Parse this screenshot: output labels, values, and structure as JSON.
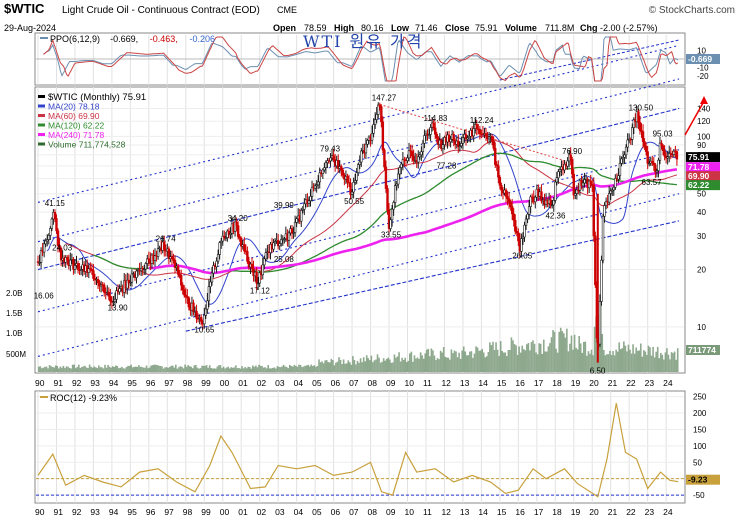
{
  "header": {
    "symbol": "$WTIC",
    "name": "Light Crude Oil - Continuous Contract (EOD)",
    "exchange": "CME",
    "date": "29-Aug-2024",
    "open_label": "Open",
    "open": "78.59",
    "high_label": "High",
    "high": "80.16",
    "low_label": "Low",
    "low": "71.46",
    "close_label": "Close",
    "close": "75.91",
    "volume_label": "Volume",
    "volume": "711.8M",
    "chg_label": "Chg",
    "chg": "-2.00 (-2.57%)",
    "brand": "© StockCharts.com"
  },
  "overlay_title": "WTI 원유 가격",
  "colors": {
    "up": "#1a1a1a",
    "down": "#cc0000",
    "ma20": "#3344cc",
    "ma60": "#cc3344",
    "ma120": "#2e8b2e",
    "ma240": "#ee22ee",
    "volume": "#7a9a7a",
    "ppo": "#6b8fb0",
    "ppo_signal": "#cc4444",
    "roc": "#c8a13c",
    "channel": "#2233cc",
    "resistance": "#d44"
  },
  "ppo_panel": {
    "legend": [
      {
        "text": "PPO(6,12,9)",
        "color": "#000"
      },
      {
        "text": "-0.669,",
        "color": "#000"
      },
      {
        "text": "-0.463,",
        "color": "#cc0000"
      },
      {
        "text": "-0.206",
        "color": "#3366cc"
      }
    ],
    "axis_ticks": [
      "10",
      "0",
      "-10",
      "-20"
    ],
    "last_value": "-0.669"
  },
  "price_panel": {
    "legend": [
      {
        "text": "$WTIC (Monthly) 75.91",
        "color": "#000"
      },
      {
        "text": "MA(20) 78.18",
        "color": "#3344cc"
      },
      {
        "text": "MA(60) 69.90",
        "color": "#cc3344"
      },
      {
        "text": "MA(120) 62.22",
        "color": "#2e8b2e"
      },
      {
        "text": "MA(240) 71.78",
        "color": "#ee22ee"
      },
      {
        "text": "Volume 711,774,528",
        "color": "#2e6b2e"
      }
    ],
    "right_ticks": [
      "140",
      "120",
      "100",
      "90",
      "80",
      "70",
      "60",
      "50",
      "40",
      "30",
      "20",
      "10"
    ],
    "left_ticks": [
      "2.0B",
      "1.5B",
      "1.0B",
      "500M"
    ],
    "last_price": "75.91",
    "ma_tags": [
      "71.78",
      "69.90",
      "62.22"
    ],
    "volume_tag": "711774"
  },
  "roc_panel": {
    "legend": "ROC(12) -9.23%",
    "axis_ticks": [
      "250",
      "200",
      "150",
      "100",
      "50",
      "0",
      "-50"
    ],
    "last_value": "-9.23"
  },
  "x_labels": [
    "90",
    "91",
    "92",
    "93",
    "94",
    "95",
    "96",
    "97",
    "98",
    "99",
    "00",
    "01",
    "02",
    "03",
    "04",
    "05",
    "06",
    "07",
    "08",
    "09",
    "10",
    "11",
    "12",
    "13",
    "14",
    "15",
    "16",
    "17",
    "18",
    "19",
    "20",
    "21",
    "22",
    "23",
    "24"
  ],
  "chart_data": {
    "type": "line",
    "title": "$WTIC Light Crude Oil - Continuous Contract (EOD), Monthly",
    "y_scale": "log",
    "ylim": [
      6,
      160
    ],
    "annotations": [
      {
        "year": 1990.8,
        "value": 41.15
      },
      {
        "year": 1991.2,
        "value": 24.03
      },
      {
        "year": 1990.2,
        "value": 16.06
      },
      {
        "year": 1994.2,
        "value": 13.9
      },
      {
        "year": 1996.8,
        "value": 26.74
      },
      {
        "year": 1998.9,
        "value": 10.65
      },
      {
        "year": 2000.7,
        "value": 34.2
      },
      {
        "year": 2001.9,
        "value": 17.12
      },
      {
        "year": 2003.2,
        "value": 25.08
      },
      {
        "year": 2003.2,
        "value": 39.99
      },
      {
        "year": 2005.7,
        "value": 79.43
      },
      {
        "year": 2007.0,
        "value": 50.55
      },
      {
        "year": 2008.5,
        "value": 147.27
      },
      {
        "year": 2009.0,
        "value": 33.55
      },
      {
        "year": 2011.3,
        "value": 114.83
      },
      {
        "year": 2012.0,
        "value": 77.28
      },
      {
        "year": 2013.8,
        "value": 112.24
      },
      {
        "year": 2016.1,
        "value": 26.05
      },
      {
        "year": 2017.9,
        "value": 42.36
      },
      {
        "year": 2018.8,
        "value": 76.9
      },
      {
        "year": 2020.3,
        "value": 6.5
      },
      {
        "year": 2022.4,
        "value": 130.5
      },
      {
        "year": 2023.1,
        "value": 63.57
      },
      {
        "year": 2023.7,
        "value": 95.03
      }
    ],
    "series": [
      {
        "name": "$WTIC (Monthly)",
        "x": [
          1990,
          1990.6,
          1990.8,
          1991.2,
          1992,
          1993,
          1994,
          1995,
          1996,
          1996.8,
          1997.5,
          1998,
          1998.9,
          1999.5,
          2000,
          2000.7,
          2001,
          2001.9,
          2002.5,
          2003,
          2003.5,
          2004,
          2004.5,
          2005,
          2005.7,
          2006.5,
          2007,
          2007.5,
          2008,
          2008.5,
          2008.8,
          2009,
          2009.5,
          2010,
          2010.5,
          2011,
          2011.3,
          2011.8,
          2012.3,
          2012.8,
          2013,
          2013.8,
          2014,
          2014.5,
          2015,
          2015.5,
          2016.1,
          2016.6,
          2017,
          2017.9,
          2018,
          2018.8,
          2019,
          2019.5,
          2020,
          2020.3,
          2020.6,
          2021,
          2021.5,
          2022,
          2022.4,
          2022.8,
          2023,
          2023.5,
          2023.7,
          2024,
          2024.4,
          2024.66
        ],
        "values": [
          22,
          30,
          41.15,
          24.03,
          21,
          19,
          13.9,
          18,
          22,
          26.74,
          20,
          14,
          10.65,
          20,
          30,
          34.2,
          27,
          17.12,
          26,
          28,
          30,
          35,
          45,
          55,
          79.43,
          65,
          50.55,
          80,
          100,
          147.27,
          60,
          33.55,
          65,
          80,
          78,
          100,
          114.83,
          90,
          100,
          90,
          95,
          112.24,
          105,
          100,
          55,
          45,
          26.05,
          45,
          50,
          42.36,
          60,
          76.9,
          52,
          58,
          55,
          6.5,
          40,
          50,
          70,
          95,
          130.5,
          90,
          75,
          63.57,
          95.03,
          78,
          82,
          75.91
        ]
      },
      {
        "name": "MA(20)",
        "value_last": 78.18
      },
      {
        "name": "MA(60)",
        "value_last": 69.9
      },
      {
        "name": "MA(120)",
        "value_last": 62.22
      },
      {
        "name": "MA(240)",
        "value_last": 71.78
      }
    ],
    "roc_series": {
      "name": "ROC(12)",
      "last": -9.23,
      "ylim": [
        -50,
        250
      ],
      "x": [
        1990,
        1990.8,
        1991.5,
        1992.5,
        1993.5,
        1994.5,
        1995.5,
        1996.5,
        1997.5,
        1998.5,
        1999.3,
        1999.9,
        2000.5,
        2001.5,
        2002.3,
        2003,
        2004,
        2005,
        2006,
        2007,
        2008,
        2008.6,
        2009.2,
        2009.9,
        2010.5,
        2011.5,
        2012.5,
        2013.5,
        2014.5,
        2015.3,
        2016,
        2016.8,
        2017.5,
        2018.5,
        2019.2,
        2020.3,
        2020.8,
        2021.3,
        2021.8,
        2022.4,
        2023,
        2023.7,
        2024.2,
        2024.66
      ],
      "values": [
        10,
        75,
        -20,
        10,
        -10,
        -25,
        20,
        30,
        -10,
        -40,
        40,
        130,
        80,
        -30,
        -25,
        40,
        30,
        40,
        10,
        20,
        50,
        -40,
        -50,
        80,
        20,
        30,
        -10,
        10,
        -10,
        -45,
        -35,
        30,
        0,
        30,
        -15,
        -55,
        60,
        230,
        80,
        60,
        -30,
        20,
        -5,
        -9.23
      ]
    },
    "ppo_series": {
      "name": "PPO(6,12,9)",
      "values_last": [
        -0.669,
        -0.463,
        -0.206
      ]
    }
  }
}
